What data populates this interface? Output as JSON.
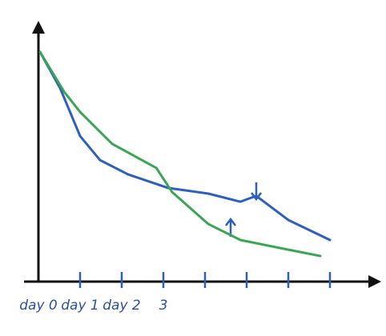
{
  "chart_data": {
    "type": "line",
    "xlim": [
      0,
      8
    ],
    "ylim": [
      0,
      10
    ],
    "xticks": [
      {
        "value": 0,
        "label": "day 0"
      },
      {
        "value": 1,
        "label": "day 1"
      },
      {
        "value": 2,
        "label": "day 2"
      },
      3,
      {
        "value": 4,
        "label": null
      },
      {
        "value": 5,
        "label": null
      },
      {
        "value": 6,
        "label": null
      },
      {
        "value": 7,
        "label": null
      }
    ],
    "series": [
      {
        "color": "#2d5fbf",
        "x": [
          0.04,
          0.52,
          1.0,
          1.48,
          2.15,
          3.12,
          4.08,
          4.85,
          5.23,
          6.0,
          7.0
        ],
        "values": [
          9.05,
          7.63,
          5.74,
          4.79,
          4.23,
          3.69,
          3.47,
          3.15,
          3.38,
          2.43,
          1.64
        ]
      },
      {
        "color": "#3aa655",
        "x": [
          0.04,
          0.62,
          1.0,
          1.77,
          2.83,
          3.21,
          4.08,
          4.85,
          5.81,
          6.77
        ],
        "values": [
          9.05,
          7.48,
          6.69,
          5.43,
          4.48,
          3.53,
          2.27,
          1.64,
          1.32,
          1.01
        ]
      }
    ]
  }
}
